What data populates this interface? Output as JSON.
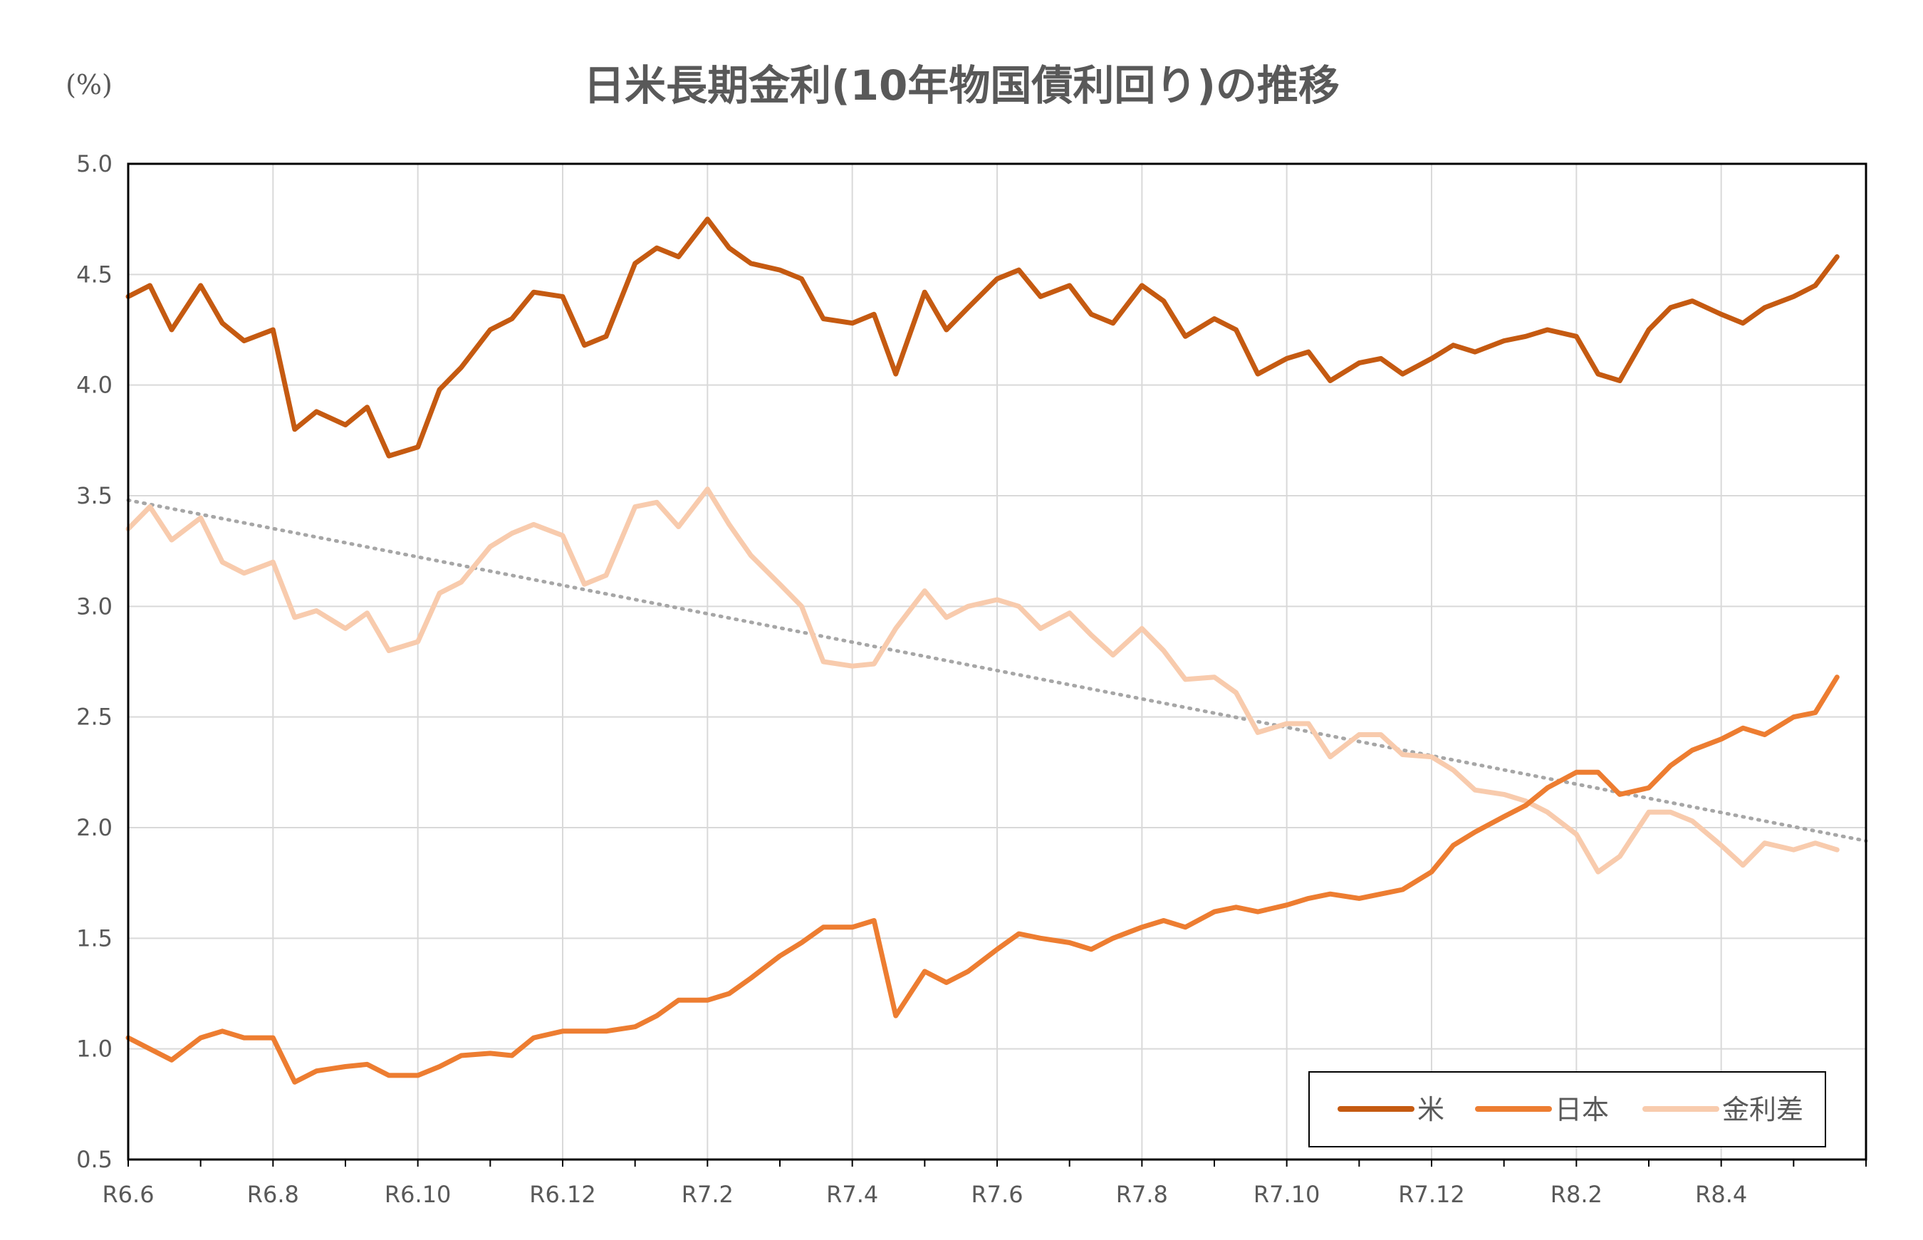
{
  "chart_data": {
    "type": "line",
    "title": "日米長期金利(10年物国債利回り)の推移",
    "unit_label": "(%)",
    "ylim": [
      0.5,
      5.0
    ],
    "y_ticks": [
      "5.0",
      "4.5",
      "4.0",
      "3.5",
      "3.0",
      "2.5",
      "2.0",
      "1.5",
      "1.0",
      "0.5"
    ],
    "x_ticks": [
      "R6.6",
      "R6.8",
      "R6.10",
      "R6.12",
      "R7.2",
      "R7.4",
      "R7.6",
      "R7.8",
      "R7.10",
      "R7.12",
      "R8.2",
      "R8.4"
    ],
    "x_months_total": 24,
    "grid": true,
    "legend_position": "bottom-right",
    "colors": {
      "us": "#C55A11",
      "japan": "#ED7D31",
      "spread": "#F8CBAD",
      "trend": "#A6A6A6",
      "grid": "#D9D9D9",
      "text": "#595959"
    },
    "series": [
      {
        "name": "米",
        "key": "us",
        "x": [
          0,
          0.3,
          0.6,
          1.0,
          1.3,
          1.6,
          2.0,
          2.3,
          2.6,
          3.0,
          3.3,
          3.6,
          4.0,
          4.3,
          4.6,
          5.0,
          5.3,
          5.6,
          6.0,
          6.3,
          6.6,
          7.0,
          7.3,
          7.6,
          8.0,
          8.3,
          8.6,
          9.0,
          9.3,
          9.6,
          10.0,
          10.3,
          10.6,
          11.0,
          11.3,
          11.6,
          12.0,
          12.3,
          12.6,
          13.0,
          13.3,
          13.6,
          14.0,
          14.3,
          14.6,
          15.0,
          15.3,
          15.6,
          16.0,
          16.3,
          16.6,
          17.0,
          17.3,
          17.6,
          18.0,
          18.3,
          18.6,
          19.0,
          19.3,
          19.6,
          20.0,
          20.3,
          20.6,
          21.0,
          21.3,
          21.6,
          22.0,
          22.3,
          22.6,
          23.0,
          23.3,
          23.6
        ],
        "values": [
          4.4,
          4.45,
          4.25,
          4.45,
          4.28,
          4.2,
          4.25,
          3.8,
          3.88,
          3.82,
          3.9,
          3.68,
          3.72,
          3.98,
          4.08,
          4.25,
          4.3,
          4.42,
          4.4,
          4.18,
          4.22,
          4.55,
          4.62,
          4.58,
          4.75,
          4.62,
          4.55,
          4.52,
          4.48,
          4.3,
          4.28,
          4.32,
          4.05,
          4.42,
          4.25,
          4.35,
          4.48,
          4.52,
          4.4,
          4.45,
          4.32,
          4.28,
          4.45,
          4.38,
          4.22,
          4.3,
          4.25,
          4.05,
          4.12,
          4.15,
          4.02,
          4.1,
          4.12,
          4.05,
          4.12,
          4.18,
          4.15,
          4.2,
          4.22,
          4.25,
          4.22,
          4.05,
          4.02,
          4.25,
          4.35,
          4.38,
          4.32,
          4.28,
          4.35,
          4.4,
          4.45,
          4.58
        ]
      },
      {
        "name": "日本",
        "key": "japan",
        "x": [
          0,
          0.3,
          0.6,
          1.0,
          1.3,
          1.6,
          2.0,
          2.3,
          2.6,
          3.0,
          3.3,
          3.6,
          4.0,
          4.3,
          4.6,
          5.0,
          5.3,
          5.6,
          6.0,
          6.3,
          6.6,
          7.0,
          7.3,
          7.6,
          8.0,
          8.3,
          8.6,
          9.0,
          9.3,
          9.6,
          10.0,
          10.3,
          10.6,
          11.0,
          11.3,
          11.6,
          12.0,
          12.3,
          12.6,
          13.0,
          13.3,
          13.6,
          14.0,
          14.3,
          14.6,
          15.0,
          15.3,
          15.6,
          16.0,
          16.3,
          16.6,
          17.0,
          17.3,
          17.6,
          18.0,
          18.3,
          18.6,
          19.0,
          19.3,
          19.6,
          20.0,
          20.3,
          20.6,
          21.0,
          21.3,
          21.6,
          22.0,
          22.3,
          22.6,
          23.0,
          23.3,
          23.6
        ],
        "values": [
          1.05,
          1.0,
          0.95,
          1.05,
          1.08,
          1.05,
          1.05,
          0.85,
          0.9,
          0.92,
          0.93,
          0.88,
          0.88,
          0.92,
          0.97,
          0.98,
          0.97,
          1.05,
          1.08,
          1.08,
          1.08,
          1.1,
          1.15,
          1.22,
          1.22,
          1.25,
          1.32,
          1.42,
          1.48,
          1.55,
          1.55,
          1.58,
          1.15,
          1.35,
          1.3,
          1.35,
          1.45,
          1.52,
          1.5,
          1.48,
          1.45,
          1.5,
          1.55,
          1.58,
          1.55,
          1.62,
          1.64,
          1.62,
          1.65,
          1.68,
          1.7,
          1.68,
          1.7,
          1.72,
          1.8,
          1.92,
          1.98,
          2.05,
          2.1,
          2.18,
          2.25,
          2.25,
          2.15,
          2.18,
          2.28,
          2.35,
          2.4,
          2.45,
          2.42,
          2.5,
          2.52,
          2.68
        ]
      },
      {
        "name": "金利差",
        "key": "spread",
        "x": [
          0,
          0.3,
          0.6,
          1.0,
          1.3,
          1.6,
          2.0,
          2.3,
          2.6,
          3.0,
          3.3,
          3.6,
          4.0,
          4.3,
          4.6,
          5.0,
          5.3,
          5.6,
          6.0,
          6.3,
          6.6,
          7.0,
          7.3,
          7.6,
          8.0,
          8.3,
          8.6,
          9.0,
          9.3,
          9.6,
          10.0,
          10.3,
          10.6,
          11.0,
          11.3,
          11.6,
          12.0,
          12.3,
          12.6,
          13.0,
          13.3,
          13.6,
          14.0,
          14.3,
          14.6,
          15.0,
          15.3,
          15.6,
          16.0,
          16.3,
          16.6,
          17.0,
          17.3,
          17.6,
          18.0,
          18.3,
          18.6,
          19.0,
          19.3,
          19.6,
          20.0,
          20.3,
          20.6,
          21.0,
          21.3,
          21.6,
          22.0,
          22.3,
          22.6,
          23.0,
          23.3,
          23.6
        ],
        "values": [
          3.35,
          3.45,
          3.3,
          3.4,
          3.2,
          3.15,
          3.2,
          2.95,
          2.98,
          2.9,
          2.97,
          2.8,
          2.84,
          3.06,
          3.11,
          3.27,
          3.33,
          3.37,
          3.32,
          3.1,
          3.14,
          3.45,
          3.47,
          3.36,
          3.53,
          3.37,
          3.23,
          3.1,
          3.0,
          2.75,
          2.73,
          2.74,
          2.9,
          3.07,
          2.95,
          3.0,
          3.03,
          3.0,
          2.9,
          2.97,
          2.87,
          2.78,
          2.9,
          2.8,
          2.67,
          2.68,
          2.61,
          2.43,
          2.47,
          2.47,
          2.32,
          2.42,
          2.42,
          2.33,
          2.32,
          2.26,
          2.17,
          2.15,
          2.12,
          2.07,
          1.97,
          1.8,
          1.87,
          2.07,
          2.07,
          2.03,
          1.92,
          1.83,
          1.93,
          1.9,
          1.93,
          1.9
        ]
      }
    ],
    "trendline": {
      "series": "金利差",
      "style": "dotted",
      "start": [
        0,
        3.48
      ],
      "end": [
        24,
        1.94
      ]
    }
  }
}
